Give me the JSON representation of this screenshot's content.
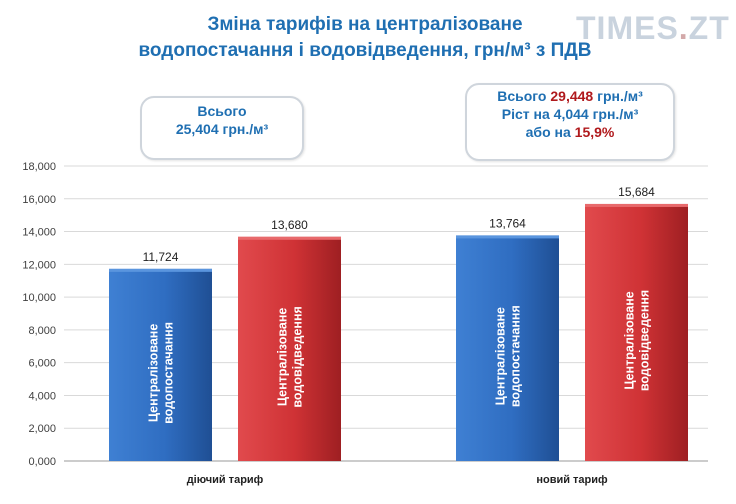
{
  "title": {
    "line1": "Зміна тарифів на централізоване",
    "line2": "водопостачання і водовідведення, грн/м³ з ПДВ"
  },
  "logo": {
    "text_main": "TIMES",
    "text_dot": ".",
    "text_zt": "ZT"
  },
  "box_current": {
    "line1": "Всього",
    "line2": "25,404 грн./м³"
  },
  "box_new": {
    "l1_a": "Всього ",
    "l1_b": "29,448 ",
    "l1_c": "грн./м³",
    "l2_a": "Ріст на ",
    "l2_b": "4,044 грн./м³",
    "l3_a": "або на ",
    "l3_b": "15,9%"
  },
  "colors": {
    "title": "#1f6fb2",
    "supply_bar": "#2f6dc1",
    "drainage_bar": "#cf3235",
    "highlight_red": "#b0191c"
  },
  "chart_data": {
    "type": "bar",
    "categories": [
      "діючий тариф",
      "новий тариф"
    ],
    "series": [
      {
        "name": "Централізоване водопостачання",
        "values": [
          11.724,
          13.764
        ],
        "labels": [
          "11,724",
          "13,764"
        ]
      },
      {
        "name": "Централізоване водовідведення",
        "values": [
          13.68,
          15.684
        ],
        "labels": [
          "13,680",
          "15,684"
        ]
      }
    ],
    "ylim": [
      0,
      18
    ],
    "yticks": [
      0,
      2,
      4,
      6,
      8,
      10,
      12,
      14,
      16,
      18
    ],
    "ytick_labels": [
      "0,000",
      "2,000",
      "4,000",
      "6,000",
      "8,000",
      "10,000",
      "12,000",
      "14,000",
      "16,000",
      "18,000"
    ],
    "bar_text": [
      [
        "Централізоване",
        "водопостачання"
      ],
      [
        "Централізоване",
        "водовідведення"
      ]
    ],
    "grid": true
  }
}
